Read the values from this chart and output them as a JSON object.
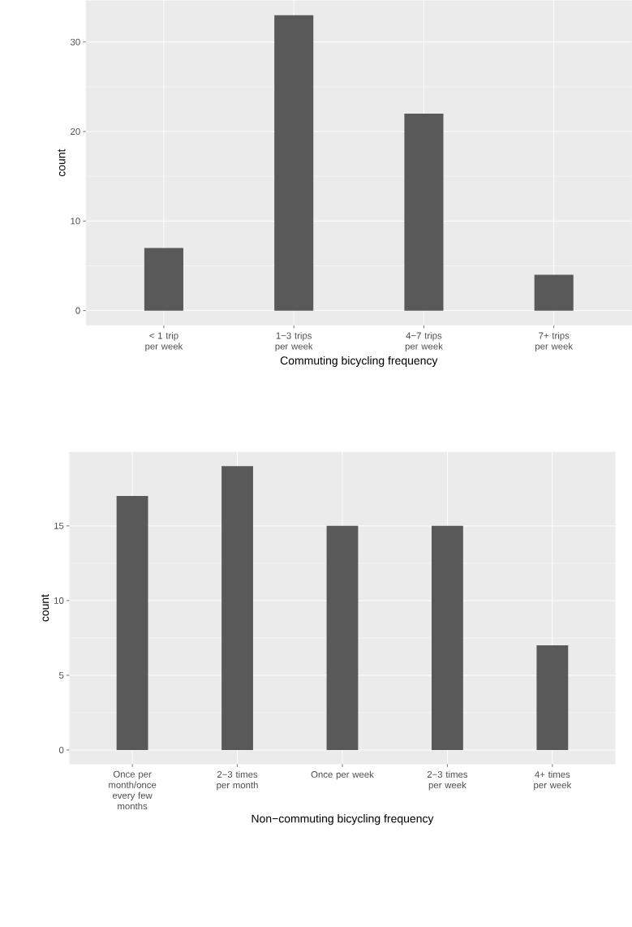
{
  "chart_data": [
    {
      "type": "bar",
      "categories": [
        "< 1 trip per week",
        "1−3 trips per week",
        "4−7 trips per week",
        "7+ trips per week"
      ],
      "values": [
        7,
        33,
        22,
        4
      ],
      "color": "#595959",
      "xlabel": "Commuting bicycling frequency",
      "ylabel": "count",
      "ylim": [
        -1.65,
        34.65
      ],
      "yticks": [
        0,
        10,
        20,
        30
      ],
      "grid": true
    },
    {
      "type": "bar",
      "categories": [
        "Once per month/once every few months",
        "2−3 times per month",
        "Once per week",
        "2−3 times per week",
        "4+ times per week"
      ],
      "values": [
        17,
        19,
        15,
        15,
        7
      ],
      "color": "#595959",
      "xlabel": "Non−commuting bicycling frequency",
      "ylabel": "count",
      "ylim": [
        -0.95,
        19.95
      ],
      "yticks": [
        0,
        5,
        10,
        15
      ],
      "grid": true
    }
  ]
}
